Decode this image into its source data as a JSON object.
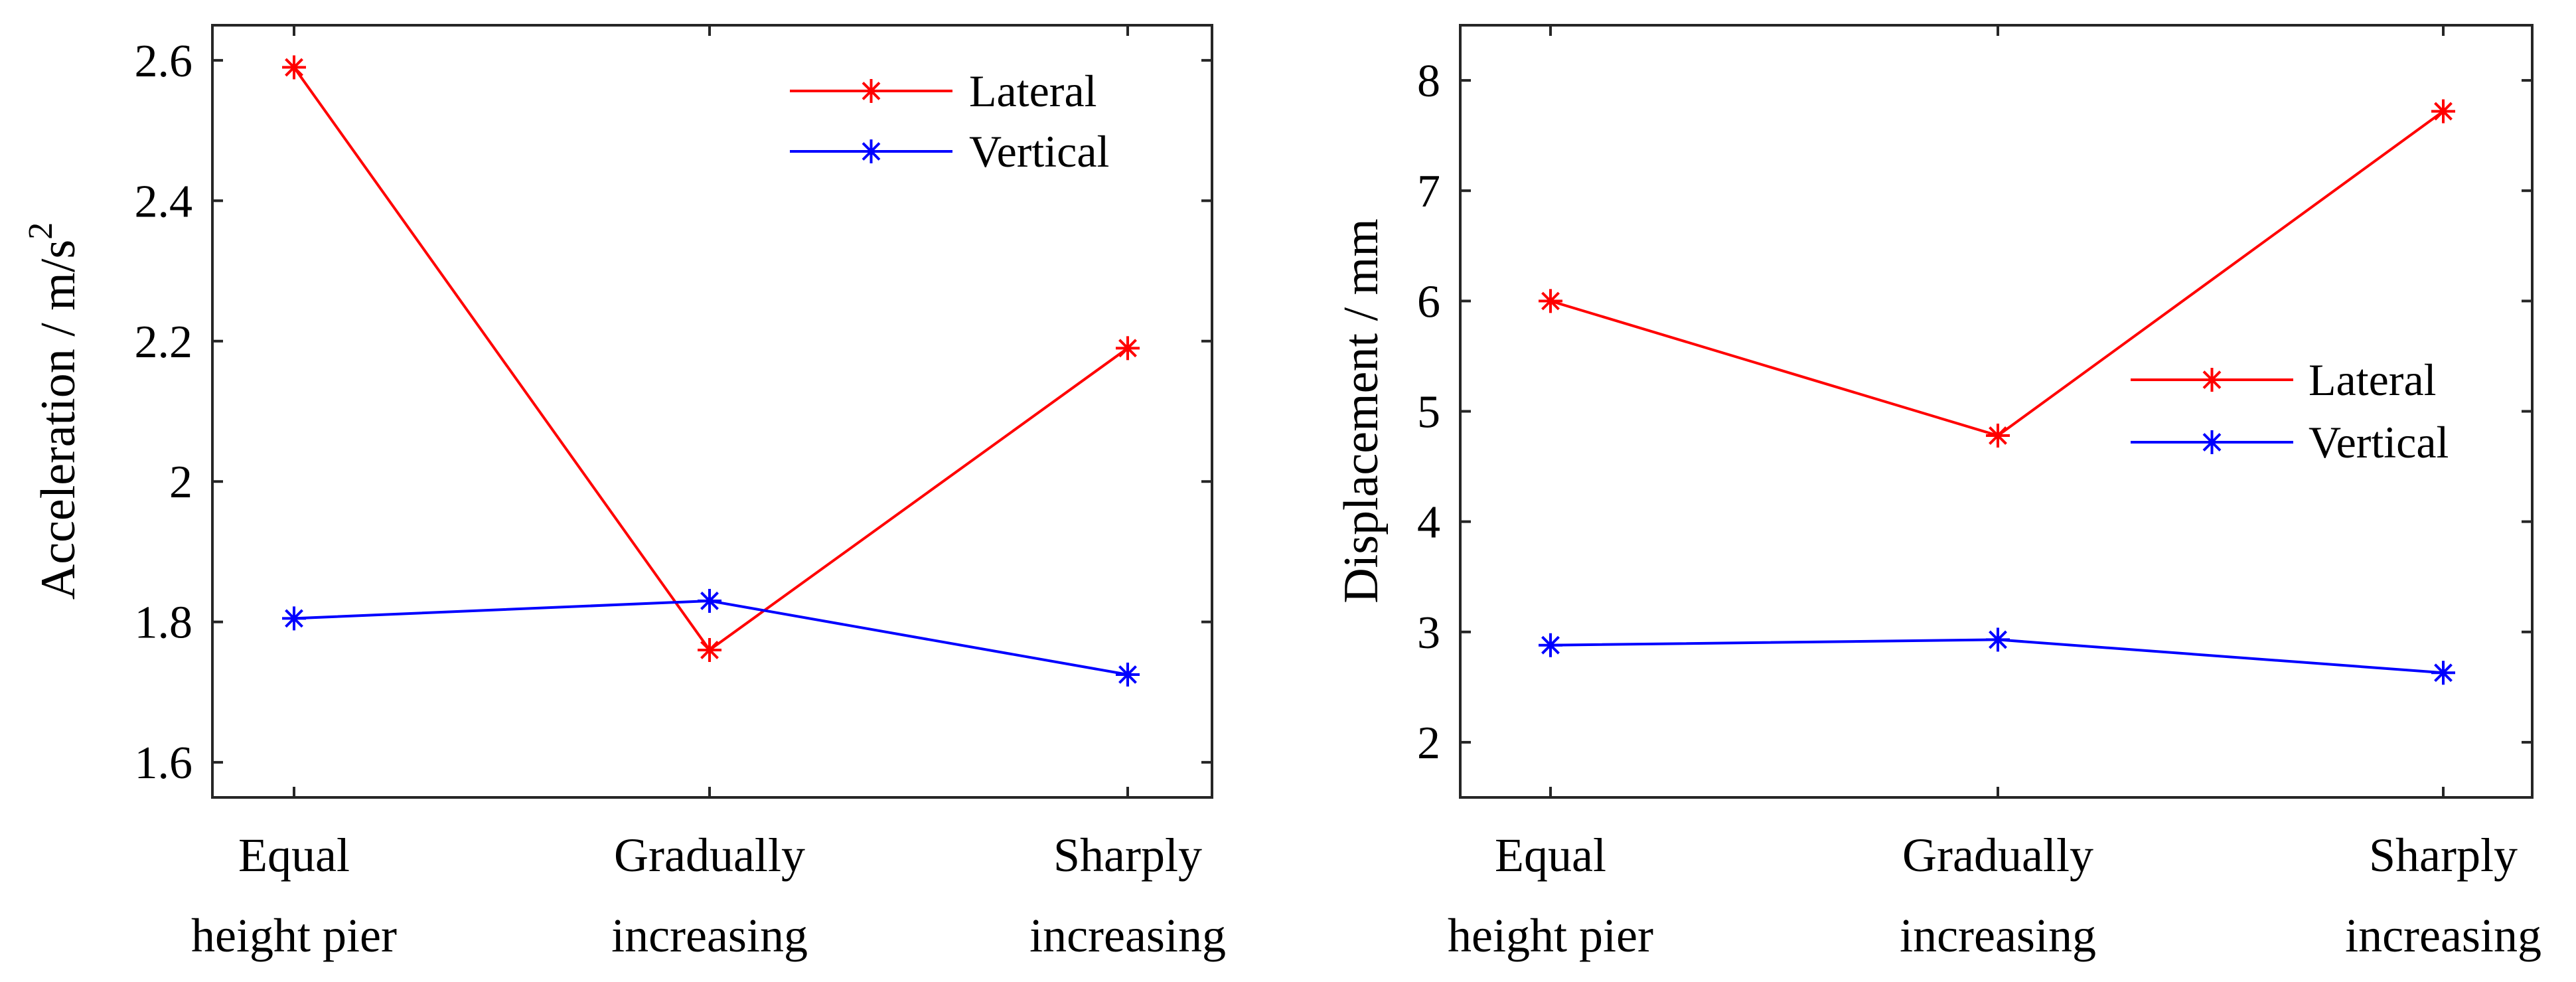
{
  "chart_data": [
    {
      "type": "line",
      "categories": [
        "Equal height pier",
        "Gradually increasing",
        "Sharply increasing"
      ],
      "category_lines": [
        [
          "Equal",
          "height pier"
        ],
        [
          "Gradually",
          "increasing"
        ],
        [
          "Sharply",
          "increasing"
        ]
      ],
      "ylabel": "Acceleration / m/s",
      "ylabel_superscript": "2",
      "ylim": [
        1.55,
        2.65
      ],
      "yticks": [
        1.6,
        1.8,
        2.0,
        2.2,
        2.4,
        2.6
      ],
      "ytick_labels": [
        "1.6",
        "1.8",
        "2",
        "2.2",
        "2.4",
        "2.6"
      ],
      "grid": false,
      "legend_position": "top-right",
      "series": [
        {
          "name": "Lateral",
          "color": "#ff0000",
          "marker": "asterisk",
          "values": [
            2.59,
            1.76,
            2.19
          ]
        },
        {
          "name": "Vertical",
          "color": "#0000ff",
          "marker": "asterisk",
          "values": [
            1.805,
            1.83,
            1.725
          ]
        }
      ]
    },
    {
      "type": "line",
      "categories": [
        "Equal height pier",
        "Gradually increasing",
        "Sharply increasing"
      ],
      "category_lines": [
        [
          "Equal",
          "height pier"
        ],
        [
          "Gradually",
          "increasing"
        ],
        [
          "Sharply",
          "increasing"
        ]
      ],
      "ylabel": "Displacement / mm",
      "ylabel_superscript": "",
      "ylim": [
        1.5,
        8.5
      ],
      "yticks": [
        2,
        3,
        4,
        5,
        6,
        7,
        8
      ],
      "ytick_labels": [
        "2",
        "3",
        "4",
        "5",
        "6",
        "7",
        "8"
      ],
      "grid": false,
      "legend_position": "center-right",
      "series": [
        {
          "name": "Lateral",
          "color": "#ff0000",
          "marker": "asterisk",
          "values": [
            6.0,
            4.78,
            7.72
          ]
        },
        {
          "name": "Vertical",
          "color": "#0000ff",
          "marker": "asterisk",
          "values": [
            2.88,
            2.93,
            2.63
          ]
        }
      ]
    }
  ]
}
